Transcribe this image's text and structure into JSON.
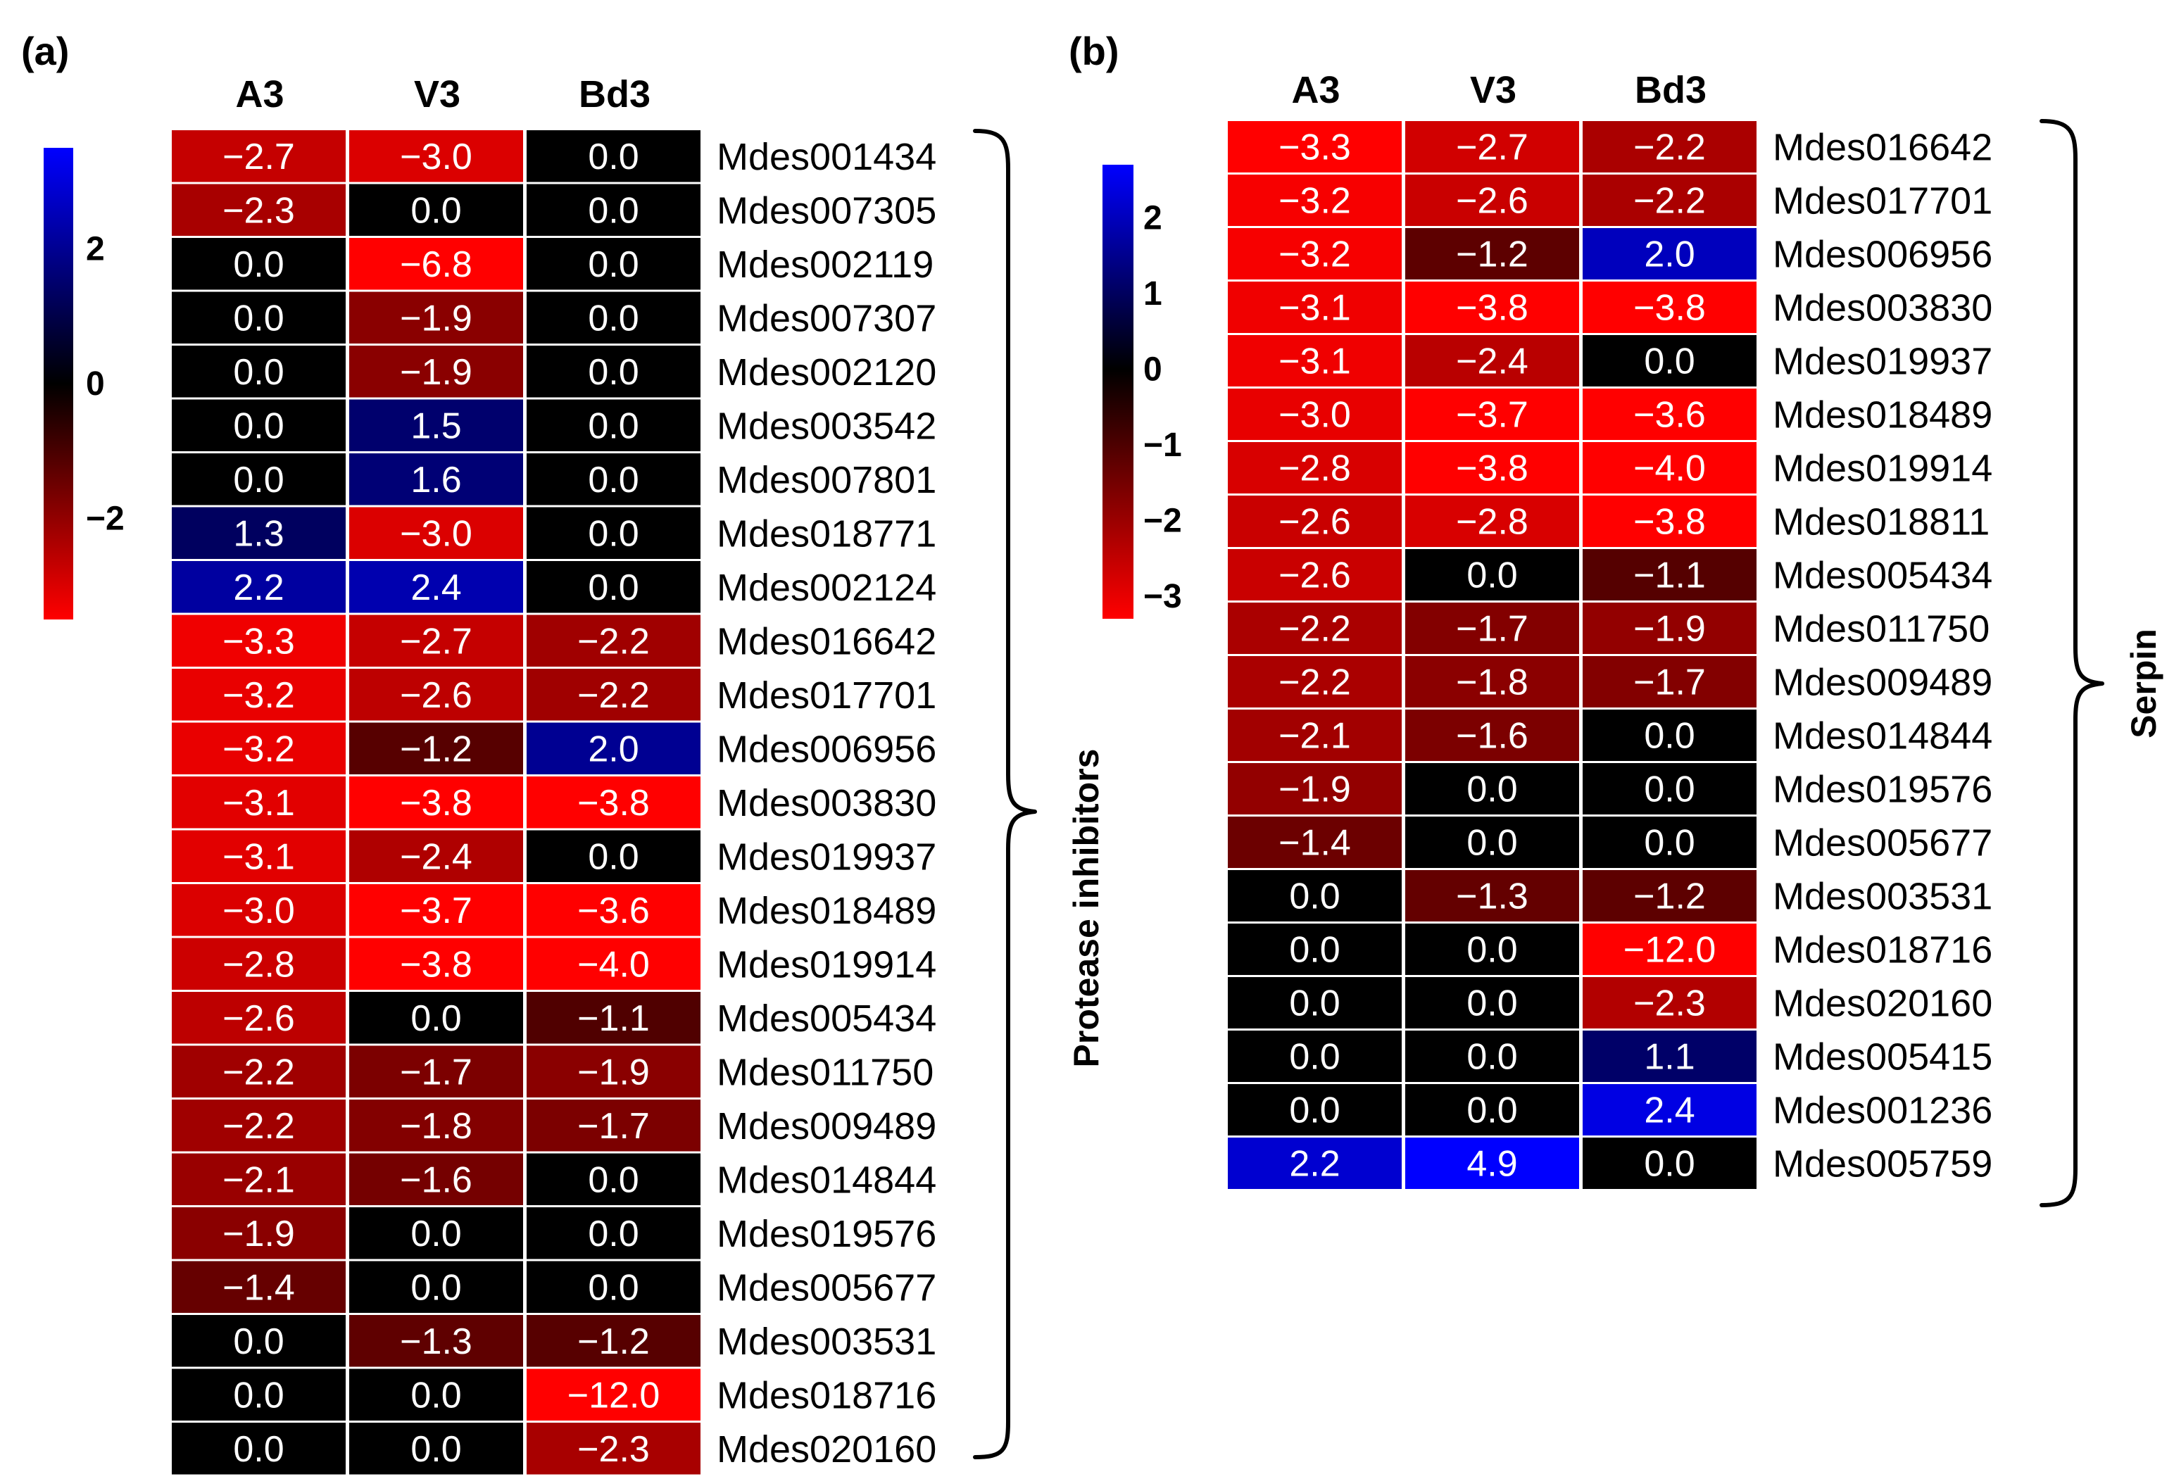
{
  "chart_data": [
    {
      "type": "heatmap",
      "panel": "(a)",
      "columns": [
        "A3",
        "V3",
        "Bd3"
      ],
      "rows": [
        "Mdes001434",
        "Mdes007305",
        "Mdes002119",
        "Mdes007307",
        "Mdes002120",
        "Mdes003542",
        "Mdes007801",
        "Mdes018771",
        "Mdes002124",
        "Mdes016642",
        "Mdes017701",
        "Mdes006956",
        "Mdes003830",
        "Mdes019937",
        "Mdes018489",
        "Mdes019914",
        "Mdes005434",
        "Mdes011750",
        "Mdes009489",
        "Mdes014844",
        "Mdes019576",
        "Mdes005677",
        "Mdes003531",
        "Mdes018716",
        "Mdes020160"
      ],
      "values": [
        [
          -2.7,
          -3.0,
          0.0
        ],
        [
          -2.3,
          0.0,
          0.0
        ],
        [
          0.0,
          -6.8,
          0.0
        ],
        [
          0.0,
          -1.9,
          0.0
        ],
        [
          0.0,
          -1.9,
          0.0
        ],
        [
          0.0,
          1.5,
          0.0
        ],
        [
          0.0,
          1.6,
          0.0
        ],
        [
          1.3,
          -3.0,
          0.0
        ],
        [
          2.2,
          2.4,
          0.0
        ],
        [
          -3.3,
          -2.7,
          -2.2
        ],
        [
          -3.2,
          -2.6,
          -2.2
        ],
        [
          -3.2,
          -1.2,
          2.0
        ],
        [
          -3.1,
          -3.8,
          -3.8
        ],
        [
          -3.1,
          -2.4,
          0.0
        ],
        [
          -3.0,
          -3.7,
          -3.6
        ],
        [
          -2.8,
          -3.8,
          -4.0
        ],
        [
          -2.6,
          0.0,
          -1.1
        ],
        [
          -2.2,
          -1.7,
          -1.9
        ],
        [
          -2.2,
          -1.8,
          -1.7
        ],
        [
          -2.1,
          -1.6,
          0.0
        ],
        [
          -1.9,
          0.0,
          0.0
        ],
        [
          -1.4,
          0.0,
          0.0
        ],
        [
          0.0,
          -1.3,
          -1.2
        ],
        [
          0.0,
          0.0,
          -12.0
        ],
        [
          0.0,
          0.0,
          -2.3
        ]
      ],
      "group_label": "Protease inhibitors",
      "colorbar": {
        "min": -3.5,
        "max": 3.5,
        "ticks": [
          2,
          0,
          -2
        ],
        "tick_labels": [
          "2",
          "0",
          "−2"
        ],
        "low_color": "#ff0000",
        "mid_color": "#000000",
        "high_color": "#0000ff"
      }
    },
    {
      "type": "heatmap",
      "panel": "(b)",
      "columns": [
        "A3",
        "V3",
        "Bd3"
      ],
      "rows": [
        "Mdes016642",
        "Mdes017701",
        "Mdes006956",
        "Mdes003830",
        "Mdes019937",
        "Mdes018489",
        "Mdes019914",
        "Mdes018811",
        "Mdes005434",
        "Mdes011750",
        "Mdes009489",
        "Mdes014844",
        "Mdes019576",
        "Mdes005677",
        "Mdes003531",
        "Mdes018716",
        "Mdes020160",
        "Mdes005415",
        "Mdes001236",
        "Mdes005759"
      ],
      "values": [
        [
          -3.3,
          -2.7,
          -2.2
        ],
        [
          -3.2,
          -2.6,
          -2.2
        ],
        [
          -3.2,
          -1.2,
          2.0
        ],
        [
          -3.1,
          -3.8,
          -3.8
        ],
        [
          -3.1,
          -2.4,
          0.0
        ],
        [
          -3.0,
          -3.7,
          -3.6
        ],
        [
          -2.8,
          -3.8,
          -4.0
        ],
        [
          -2.6,
          -2.8,
          -3.8
        ],
        [
          -2.6,
          0.0,
          -1.1
        ],
        [
          -2.2,
          -1.7,
          -1.9
        ],
        [
          -2.2,
          -1.8,
          -1.7
        ],
        [
          -2.1,
          -1.6,
          0.0
        ],
        [
          -1.9,
          0.0,
          0.0
        ],
        [
          -1.4,
          0.0,
          0.0
        ],
        [
          0.0,
          -1.3,
          -1.2
        ],
        [
          0.0,
          0.0,
          -12.0
        ],
        [
          0.0,
          0.0,
          -2.3
        ],
        [
          0.0,
          0.0,
          1.1
        ],
        [
          0.0,
          0.0,
          2.4
        ],
        [
          2.2,
          4.9,
          0.0
        ]
      ],
      "group_label": "Serpin",
      "colorbar": {
        "min": -3.3,
        "max": 2.7,
        "ticks": [
          2,
          1,
          0,
          -1,
          -2,
          -3
        ],
        "tick_labels": [
          "2",
          "1",
          "0",
          "−1",
          "−2",
          "−3"
        ],
        "low_color": "#ff0000",
        "mid_color": "#000000",
        "high_color": "#0000ff"
      }
    }
  ]
}
